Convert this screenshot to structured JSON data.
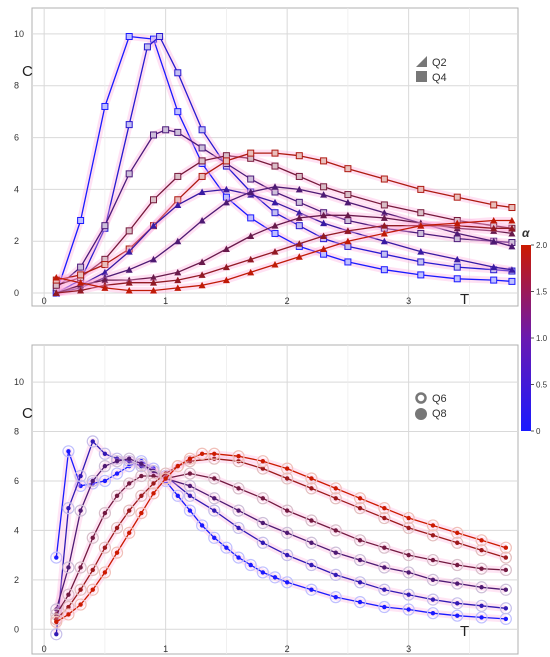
{
  "colors": {
    "cold": "#1a1aff",
    "hot": "#cc1a00",
    "grid": "#d9d9d9",
    "frame": "#b0b0b0",
    "tick_text": "#333333"
  },
  "colorbar": {
    "label": "α",
    "ticks": [
      "0",
      "0.5",
      "1.0",
      "1.5",
      "2.0"
    ],
    "tick_values": [
      0,
      0.5,
      1.0,
      1.5,
      2.0
    ]
  },
  "chart_data": [
    {
      "type": "line",
      "panel": "top",
      "ylabel": "C",
      "xlabel": "T",
      "xlim": [
        -0.1,
        3.9
      ],
      "ylim": [
        -0.5,
        11
      ],
      "xticks": [
        "0",
        "1",
        "2",
        "3"
      ],
      "yticks": [
        "0",
        "2",
        "4",
        "6",
        "8",
        "10"
      ],
      "legend": {
        "placement": "top-right",
        "entries": [
          "Q2",
          "Q4"
        ],
        "markers": [
          "triangle",
          "square"
        ]
      },
      "grid": true,
      "series": [
        {
          "alpha": 0.0,
          "marker": "square",
          "x": [
            0.1,
            0.3,
            0.5,
            0.7,
            0.9,
            1.1,
            1.3,
            1.5,
            1.7,
            1.9,
            2.1,
            2.3,
            2.5,
            2.8,
            3.1,
            3.4,
            3.7,
            3.85
          ],
          "y": [
            0,
            2.8,
            7.2,
            9.9,
            9.8,
            7,
            5,
            3.7,
            2.9,
            2.3,
            1.8,
            1.5,
            1.2,
            0.9,
            0.7,
            0.55,
            0.5,
            0.45
          ]
        },
        {
          "alpha": 0.25,
          "marker": "square",
          "x": [
            0.1,
            0.3,
            0.5,
            0.7,
            0.85,
            0.95,
            1.1,
            1.3,
            1.5,
            1.7,
            1.9,
            2.1,
            2.3,
            2.5,
            2.8,
            3.1,
            3.4,
            3.7,
            3.85
          ],
          "y": [
            0,
            0.5,
            2.5,
            6.5,
            9.5,
            9.9,
            8.5,
            6.3,
            4.9,
            3.9,
            3.1,
            2.6,
            2.1,
            1.8,
            1.5,
            1.2,
            1.0,
            0.9,
            0.85
          ]
        },
        {
          "alpha": 0.75,
          "marker": "square",
          "x": [
            0.1,
            0.3,
            0.5,
            0.7,
            0.9,
            1.0,
            1.1,
            1.3,
            1.5,
            1.7,
            1.9,
            2.1,
            2.3,
            2.5,
            2.8,
            3.1,
            3.4,
            3.7,
            3.85
          ],
          "y": [
            0.2,
            1.0,
            2.6,
            4.6,
            6.1,
            6.3,
            6.2,
            5.6,
            5.0,
            4.4,
            3.9,
            3.5,
            3.1,
            2.8,
            2.5,
            2.3,
            2.1,
            2.0,
            1.95
          ]
        },
        {
          "alpha": 1.25,
          "marker": "square",
          "x": [
            0.1,
            0.3,
            0.5,
            0.7,
            0.9,
            1.1,
            1.3,
            1.5,
            1.7,
            1.9,
            2.1,
            2.3,
            2.5,
            2.8,
            3.1,
            3.4,
            3.7,
            3.85
          ],
          "y": [
            0.3,
            0.6,
            1.3,
            2.4,
            3.6,
            4.5,
            5.1,
            5.3,
            5.2,
            4.9,
            4.5,
            4.1,
            3.8,
            3.4,
            3.1,
            2.8,
            2.6,
            2.5
          ]
        },
        {
          "alpha": 1.75,
          "marker": "square",
          "x": [
            0.1,
            0.3,
            0.5,
            0.7,
            0.9,
            1.1,
            1.3,
            1.5,
            1.7,
            1.9,
            2.1,
            2.3,
            2.5,
            2.8,
            3.1,
            3.4,
            3.7,
            3.85
          ],
          "y": [
            0.5,
            0.7,
            1.1,
            1.7,
            2.6,
            3.6,
            4.5,
            5.1,
            5.4,
            5.4,
            5.3,
            5.1,
            4.8,
            4.4,
            4.0,
            3.7,
            3.4,
            3.3
          ]
        },
        {
          "alpha": 0.5,
          "marker": "triangle",
          "x": [
            0.1,
            0.3,
            0.5,
            0.7,
            0.9,
            1.1,
            1.3,
            1.5,
            1.7,
            1.9,
            2.1,
            2.3,
            2.5,
            2.8,
            3.1,
            3.4,
            3.7,
            3.85
          ],
          "y": [
            0,
            0.3,
            0.8,
            1.6,
            2.6,
            3.4,
            3.9,
            4.0,
            3.8,
            3.5,
            3.1,
            2.7,
            2.4,
            2.0,
            1.6,
            1.3,
            1.0,
            0.9
          ]
        },
        {
          "alpha": 0.8,
          "marker": "triangle",
          "x": [
            0.1,
            0.3,
            0.5,
            0.7,
            0.9,
            1.1,
            1.3,
            1.5,
            1.7,
            1.9,
            2.1,
            2.3,
            2.5,
            2.8,
            3.1,
            3.4,
            3.7,
            3.85
          ],
          "y": [
            0,
            0.2,
            0.6,
            0.9,
            1.3,
            2.0,
            2.8,
            3.5,
            3.9,
            4.1,
            4.0,
            3.8,
            3.5,
            3.1,
            2.7,
            2.3,
            2.0,
            1.8
          ]
        },
        {
          "alpha": 1.1,
          "marker": "triangle",
          "x": [
            0.1,
            0.3,
            0.5,
            0.7,
            0.9,
            1.1,
            1.3,
            1.5,
            1.7,
            1.9,
            2.1,
            2.3,
            2.5,
            2.8,
            3.1,
            3.4,
            3.7,
            3.85
          ],
          "y": [
            0,
            0.3,
            0.5,
            0.5,
            0.6,
            0.8,
            1.2,
            1.7,
            2.2,
            2.6,
            2.9,
            3.0,
            3.0,
            2.9,
            2.7,
            2.5,
            2.4,
            2.3
          ]
        },
        {
          "alpha": 1.5,
          "marker": "triangle",
          "x": [
            0.1,
            0.3,
            0.5,
            0.7,
            0.9,
            1.1,
            1.3,
            1.5,
            1.7,
            1.9,
            2.1,
            2.3,
            2.5,
            2.8,
            3.1,
            3.4,
            3.7,
            3.85
          ],
          "y": [
            0,
            0.1,
            0.3,
            0.4,
            0.4,
            0.5,
            0.7,
            1.0,
            1.3,
            1.6,
            1.9,
            2.2,
            2.4,
            2.6,
            2.6,
            2.6,
            2.5,
            2.5
          ]
        },
        {
          "alpha": 1.9,
          "marker": "triangle",
          "x": [
            0.1,
            0.3,
            0.5,
            0.7,
            0.9,
            1.1,
            1.3,
            1.5,
            1.7,
            1.9,
            2.1,
            2.3,
            2.5,
            2.8,
            3.1,
            3.4,
            3.7,
            3.85
          ],
          "y": [
            0.6,
            0.4,
            0.2,
            0.1,
            0.1,
            0.2,
            0.3,
            0.5,
            0.8,
            1.1,
            1.4,
            1.7,
            2.0,
            2.3,
            2.6,
            2.7,
            2.8,
            2.8
          ]
        }
      ]
    },
    {
      "type": "line",
      "panel": "bottom",
      "ylabel": "C",
      "xlabel": "T",
      "xlim": [
        -0.1,
        3.9
      ],
      "ylim": [
        -1,
        11.5
      ],
      "xticks": [
        "0",
        "1",
        "2",
        "3"
      ],
      "yticks": [
        "0",
        "2",
        "4",
        "6",
        "8",
        "10"
      ],
      "legend": {
        "placement": "top-right",
        "entries": [
          "Q6",
          "Q8"
        ],
        "markers": [
          "ring",
          "octagon"
        ]
      },
      "grid": true,
      "series": [
        {
          "alpha": 0.0,
          "x": [
            0.1,
            0.2,
            0.3,
            0.4,
            0.5,
            0.6,
            0.7,
            0.8,
            0.9,
            1.0,
            1.1,
            1.2,
            1.3,
            1.4,
            1.5,
            1.6,
            1.7,
            1.8,
            1.9,
            2.0,
            2.2,
            2.4,
            2.6,
            2.8,
            3.0,
            3.2,
            3.4,
            3.6,
            3.8
          ],
          "y": [
            2.9,
            7.2,
            5.8,
            5.9,
            6.0,
            6.3,
            6.6,
            6.8,
            6.5,
            6.0,
            5.4,
            4.8,
            4.2,
            3.7,
            3.3,
            2.9,
            2.6,
            2.3,
            2.1,
            1.9,
            1.6,
            1.3,
            1.1,
            0.9,
            0.8,
            0.65,
            0.55,
            0.48,
            0.42
          ]
        },
        {
          "alpha": 0.4,
          "x": [
            0.1,
            0.2,
            0.3,
            0.4,
            0.5,
            0.6,
            0.7,
            0.8,
            0.9,
            1.0,
            1.2,
            1.4,
            1.6,
            1.8,
            2.0,
            2.2,
            2.4,
            2.6,
            2.8,
            3.0,
            3.2,
            3.4,
            3.6,
            3.8
          ],
          "y": [
            -0.2,
            4.9,
            6.2,
            7.6,
            7.1,
            6.9,
            6.8,
            6.6,
            6.4,
            6.2,
            5.4,
            4.8,
            4.1,
            3.5,
            3.0,
            2.6,
            2.2,
            1.9,
            1.6,
            1.4,
            1.2,
            1.05,
            0.95,
            0.85
          ]
        },
        {
          "alpha": 0.8,
          "x": [
            0.1,
            0.2,
            0.3,
            0.4,
            0.5,
            0.6,
            0.7,
            0.8,
            0.9,
            1.0,
            1.2,
            1.4,
            1.6,
            1.8,
            2.0,
            2.2,
            2.4,
            2.6,
            2.8,
            3.0,
            3.2,
            3.4,
            3.6,
            3.8
          ],
          "y": [
            0.8,
            2.5,
            4.8,
            6.0,
            6.6,
            6.8,
            6.9,
            6.7,
            6.4,
            6.1,
            5.8,
            5.3,
            4.8,
            4.3,
            3.9,
            3.5,
            3.1,
            2.8,
            2.5,
            2.3,
            2.0,
            1.85,
            1.7,
            1.6
          ]
        },
        {
          "alpha": 1.2,
          "x": [
            0.1,
            0.2,
            0.3,
            0.4,
            0.5,
            0.6,
            0.7,
            0.8,
            0.9,
            1.0,
            1.2,
            1.4,
            1.6,
            1.8,
            2.0,
            2.2,
            2.4,
            2.6,
            2.8,
            3.0,
            3.2,
            3.4,
            3.6,
            3.8
          ],
          "y": [
            0.6,
            1.4,
            2.5,
            3.7,
            4.7,
            5.4,
            5.9,
            6.2,
            6.2,
            6.1,
            6.3,
            6.1,
            5.7,
            5.3,
            4.8,
            4.4,
            4.0,
            3.6,
            3.3,
            3.0,
            2.8,
            2.6,
            2.45,
            2.4
          ]
        },
        {
          "alpha": 1.6,
          "x": [
            0.1,
            0.2,
            0.3,
            0.4,
            0.5,
            0.6,
            0.7,
            0.8,
            0.9,
            1.0,
            1.1,
            1.2,
            1.4,
            1.6,
            1.8,
            2.0,
            2.2,
            2.4,
            2.6,
            2.8,
            3.0,
            3.2,
            3.4,
            3.6,
            3.8
          ],
          "y": [
            0.4,
            0.9,
            1.6,
            2.4,
            3.3,
            4.1,
            4.8,
            5.4,
            5.9,
            6.3,
            6.6,
            6.8,
            6.9,
            6.8,
            6.5,
            6.1,
            5.7,
            5.3,
            4.9,
            4.5,
            4.1,
            3.8,
            3.5,
            3.2,
            2.9
          ]
        },
        {
          "alpha": 2.0,
          "x": [
            0.1,
            0.2,
            0.3,
            0.4,
            0.5,
            0.6,
            0.7,
            0.8,
            0.9,
            1.0,
            1.1,
            1.2,
            1.3,
            1.4,
            1.6,
            1.8,
            2.0,
            2.2,
            2.4,
            2.6,
            2.8,
            3.0,
            3.2,
            3.4,
            3.6,
            3.8
          ],
          "y": [
            0.3,
            0.6,
            1.0,
            1.6,
            2.3,
            3.1,
            3.9,
            4.7,
            5.5,
            6.1,
            6.6,
            6.9,
            7.1,
            7.1,
            7.0,
            6.8,
            6.5,
            6.1,
            5.7,
            5.3,
            4.9,
            4.5,
            4.2,
            3.9,
            3.6,
            3.3
          ]
        }
      ]
    }
  ]
}
